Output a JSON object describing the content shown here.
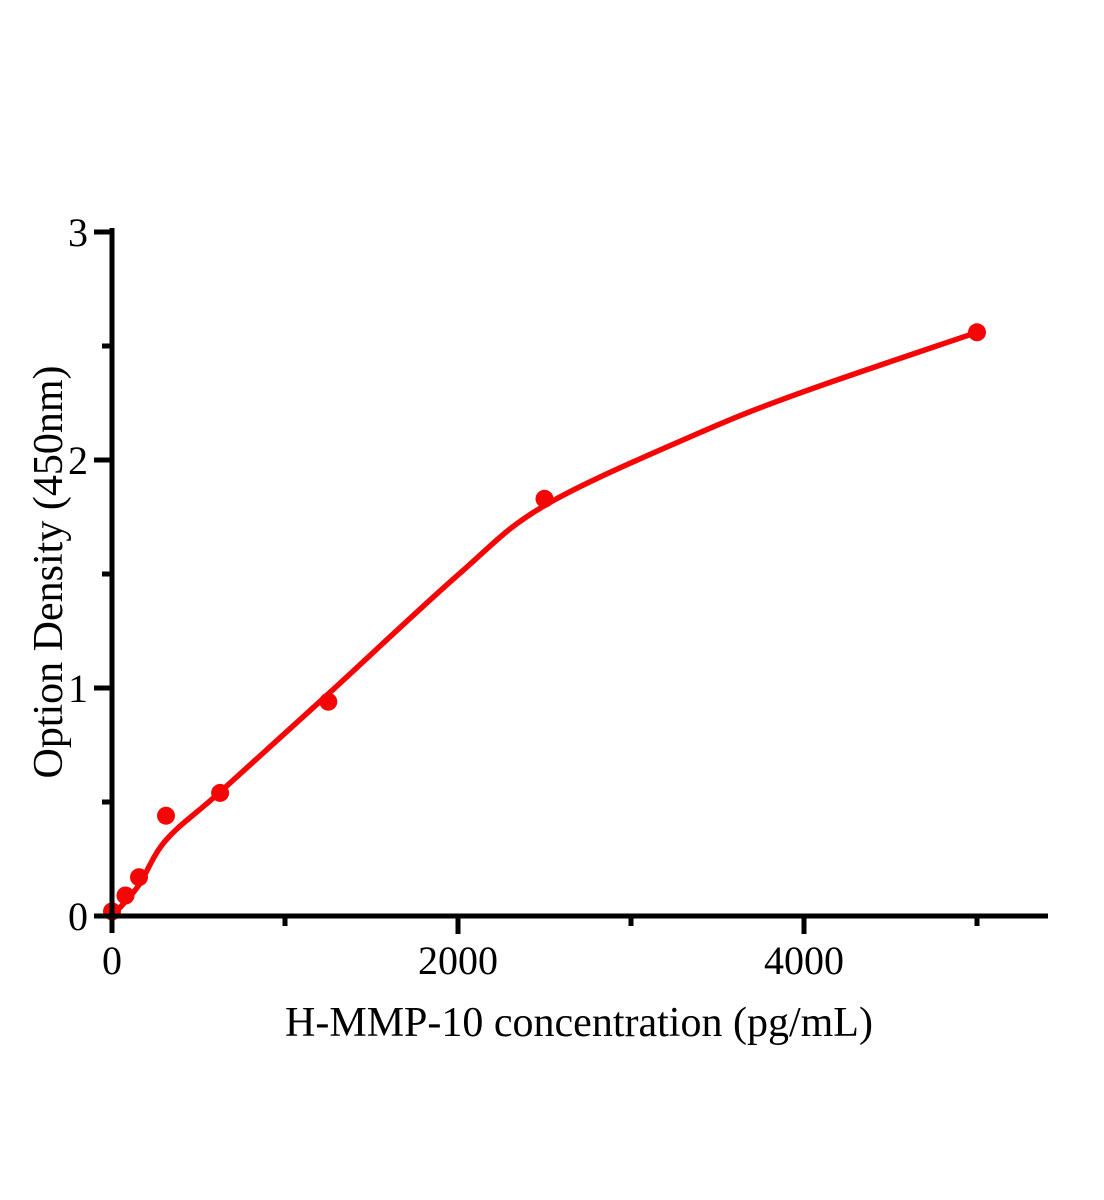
{
  "figure": {
    "background": "#ffffff",
    "axis_color": "#000000",
    "accent_red": "#f40606"
  },
  "chart_data": {
    "type": "scatter",
    "title": "",
    "xlabel": "H-MMP-10 concentration (pg/mL)",
    "ylabel": "Option Density (450nm)",
    "xlim": [
      0,
      5410
    ],
    "ylim": [
      0,
      3
    ],
    "grid": false,
    "legend": "none",
    "x_major_ticks": [
      0,
      2000,
      4000
    ],
    "x_minor_ticks": [
      1000,
      3000,
      5000
    ],
    "y_major_ticks": [
      0,
      1,
      2,
      3
    ],
    "y_minor_ticks": [
      0.5,
      1.5,
      2.5
    ],
    "point_color": "#f40606",
    "line_color": "#f40606",
    "series": [
      {
        "name": "standard-points",
        "type": "scatter",
        "points": [
          [
            0,
            0.02
          ],
          [
            78,
            0.09
          ],
          [
            156,
            0.17
          ],
          [
            312,
            0.44
          ],
          [
            625,
            0.54
          ],
          [
            1250,
            0.94
          ],
          [
            2500,
            1.83
          ],
          [
            5000,
            2.56
          ]
        ]
      },
      {
        "name": "fit-curve",
        "type": "line",
        "points": [
          [
            0,
            0.0
          ],
          [
            150,
            0.13
          ],
          [
            312,
            0.333
          ],
          [
            625,
            0.544
          ],
          [
            1250,
            0.974
          ],
          [
            2000,
            1.496
          ],
          [
            2500,
            1.8
          ],
          [
            3380,
            2.114
          ],
          [
            4000,
            2.3
          ],
          [
            5000,
            2.56
          ]
        ]
      }
    ]
  }
}
